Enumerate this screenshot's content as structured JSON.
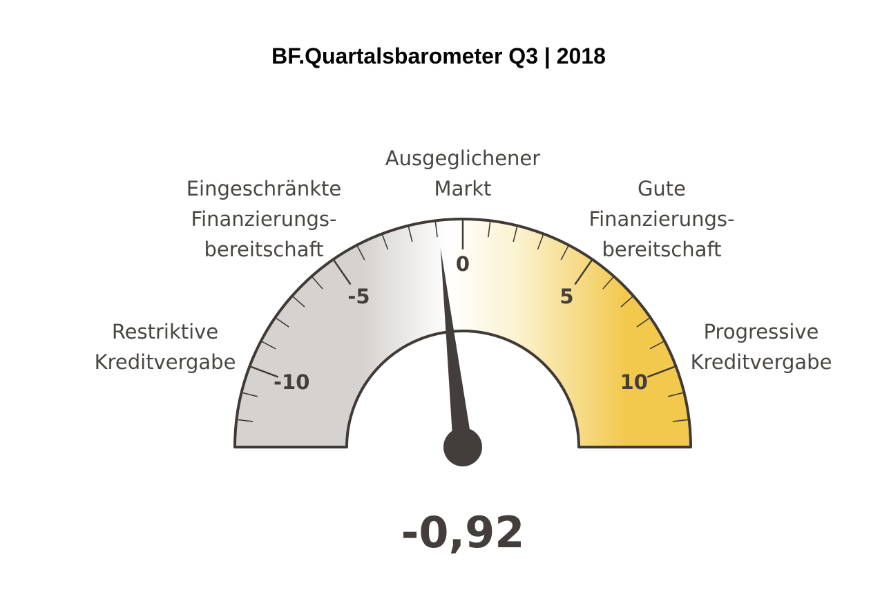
{
  "title": "BF.Quartalsbarometer Q3 | 2018",
  "value_text": "-0,92",
  "zones": {
    "restrictive": [
      "Restriktive",
      "Kreditvergabe"
    ],
    "limited": [
      "Eingeschränkte",
      "Finanzierungs-",
      "bereitschaft"
    ],
    "balanced": [
      "Ausgeglichener",
      "Markt"
    ],
    "good": [
      "Gute",
      "Finanzierungs-",
      "bereitschaft"
    ],
    "progressive": [
      "Progressive",
      "Kreditvergabe"
    ]
  },
  "colors": {
    "outline": "#3f3a37",
    "grey": "#d6d2cf",
    "white": "#ffffff",
    "cream": "#fbf2cf",
    "gold": "#f2c84d",
    "needle": "#433e3b"
  },
  "chart_data": {
    "type": "gauge",
    "title": "BF.Quartalsbarometer Q3 | 2018",
    "value": -0.92,
    "range": [
      -13,
      13
    ],
    "major_ticks": [
      -10,
      -5,
      0,
      5,
      10
    ],
    "tick_labels": [
      "-10",
      "-5",
      "0",
      "5",
      "10"
    ],
    "minor_tick_step": 1
  }
}
